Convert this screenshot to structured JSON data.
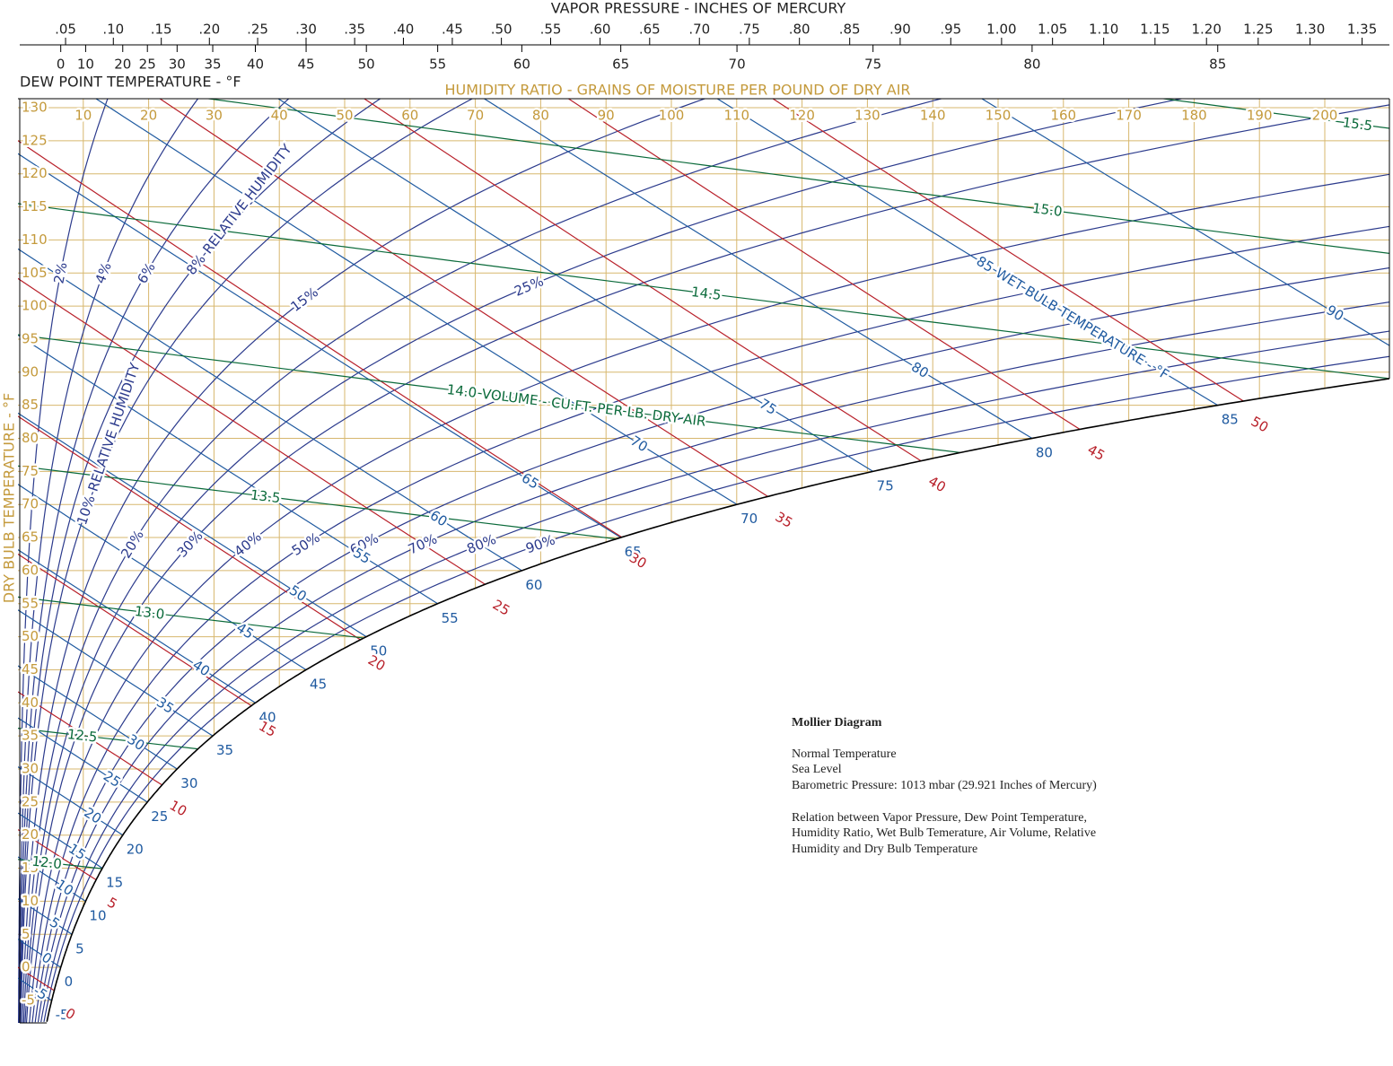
{
  "vapor_pressure_axis": {
    "title": "VAPOR PRESSURE - INCHES OF MERCURY",
    "ticks": [
      {
        "value": 0.05,
        "label": ".05"
      },
      {
        "value": 0.1,
        "label": ".10"
      },
      {
        "value": 0.15,
        "label": ".15"
      },
      {
        "value": 0.2,
        "label": ".20"
      },
      {
        "value": 0.25,
        "label": ".25"
      },
      {
        "value": 0.3,
        "label": ".30"
      },
      {
        "value": 0.35,
        "label": ".35"
      },
      {
        "value": 0.4,
        "label": ".40"
      },
      {
        "value": 0.45,
        "label": ".45"
      },
      {
        "value": 0.5,
        "label": ".50"
      },
      {
        "value": 0.55,
        "label": ".55"
      },
      {
        "value": 0.6,
        "label": ".60"
      },
      {
        "value": 0.65,
        "label": ".65"
      },
      {
        "value": 0.7,
        "label": ".70"
      },
      {
        "value": 0.75,
        "label": ".75"
      },
      {
        "value": 0.8,
        "label": ".80"
      },
      {
        "value": 0.85,
        "label": ".85"
      },
      {
        "value": 0.9,
        "label": ".90"
      },
      {
        "value": 0.95,
        "label": ".95"
      },
      {
        "value": 1.0,
        "label": "1.00"
      },
      {
        "value": 1.05,
        "label": "1.05"
      },
      {
        "value": 1.1,
        "label": "1.10"
      },
      {
        "value": 1.15,
        "label": "1.15"
      },
      {
        "value": 1.2,
        "label": "1.20"
      },
      {
        "value": 1.25,
        "label": "1.25"
      },
      {
        "value": 1.3,
        "label": "1.30"
      },
      {
        "value": 1.35,
        "label": "1.35"
      }
    ]
  },
  "dew_point_axis": {
    "title": "DEW POINT TEMPERATURE - °F",
    "ticks": [
      0,
      10,
      20,
      25,
      30,
      35,
      40,
      45,
      50,
      55,
      60,
      65,
      70,
      75,
      80,
      85
    ]
  },
  "humidity_ratio_axis": {
    "title": "HUMIDITY RATIO - GRAINS OF MOISTURE PER POUND OF DRY AIR",
    "ticks": [
      10,
      20,
      30,
      40,
      50,
      60,
      70,
      80,
      90,
      100,
      110,
      120,
      130,
      140,
      150,
      160,
      170,
      180,
      190,
      200
    ]
  },
  "dry_bulb_axis": {
    "title": "DRY BULB TEMPERATURE - °F",
    "ticks": [
      -5,
      0,
      5,
      10,
      15,
      20,
      25,
      30,
      35,
      40,
      45,
      50,
      55,
      60,
      65,
      70,
      75,
      80,
      85,
      90,
      95,
      100,
      105,
      110,
      115,
      120,
      125,
      130
    ]
  },
  "relative_humidity": {
    "label": "RELATIVE HUMIDITY",
    "lines": [
      {
        "value": 2,
        "label": "2%"
      },
      {
        "value": 4,
        "label": "4%"
      },
      {
        "value": 6,
        "label": "6%"
      },
      {
        "value": 8,
        "label": "8%"
      },
      {
        "value": 10,
        "label": "10%"
      },
      {
        "value": 15,
        "label": "15%"
      },
      {
        "value": 20,
        "label": "20%"
      },
      {
        "value": 25,
        "label": "25%"
      },
      {
        "value": 30,
        "label": "30%"
      },
      {
        "value": 40,
        "label": "40%"
      },
      {
        "value": 50,
        "label": "50%"
      },
      {
        "value": 60,
        "label": "60%"
      },
      {
        "value": 70,
        "label": "70%"
      },
      {
        "value": 80,
        "label": "80%"
      },
      {
        "value": 90,
        "label": "90%"
      }
    ]
  },
  "wet_bulb": {
    "label": "WET BULB TEMPERATURE - °F",
    "lines": [
      -5,
      0,
      5,
      10,
      15,
      20,
      25,
      30,
      35,
      40,
      45,
      50,
      55,
      60,
      65,
      70,
      75,
      80,
      85,
      90
    ]
  },
  "enthalpy": {
    "lines": [
      0,
      5,
      10,
      15,
      20,
      25,
      30,
      35,
      40,
      45,
      50
    ]
  },
  "volume": {
    "label": "VOLUME - CU.FT. PER LB. DRY AIR",
    "lines": [
      {
        "value": 12,
        "label": "12.0"
      },
      {
        "value": 12.5,
        "label": "12.5"
      },
      {
        "value": 13,
        "label": "13.0"
      },
      {
        "value": 13.5,
        "label": "13.5"
      },
      {
        "value": 14,
        "label": "14.0"
      },
      {
        "value": 14.5,
        "label": "14.5"
      },
      {
        "value": 15,
        "label": "15.0"
      },
      {
        "value": 15.5,
        "label": "15.5"
      }
    ]
  },
  "notes": {
    "title": "Mollier Diagram",
    "lines": [
      "Normal Temperature",
      "Sea Level",
      "Barometric Pressure: 1013 mbar (29.921 Inches of Mercury)"
    ],
    "description": [
      "Relation between Vapor Pressure, Dew Point Temperature,",
      "Humidity Ratio, Wet Bulb Temerature, Air Volume, Relative",
      "Humidity and Dry Bulb Temperature"
    ]
  }
}
